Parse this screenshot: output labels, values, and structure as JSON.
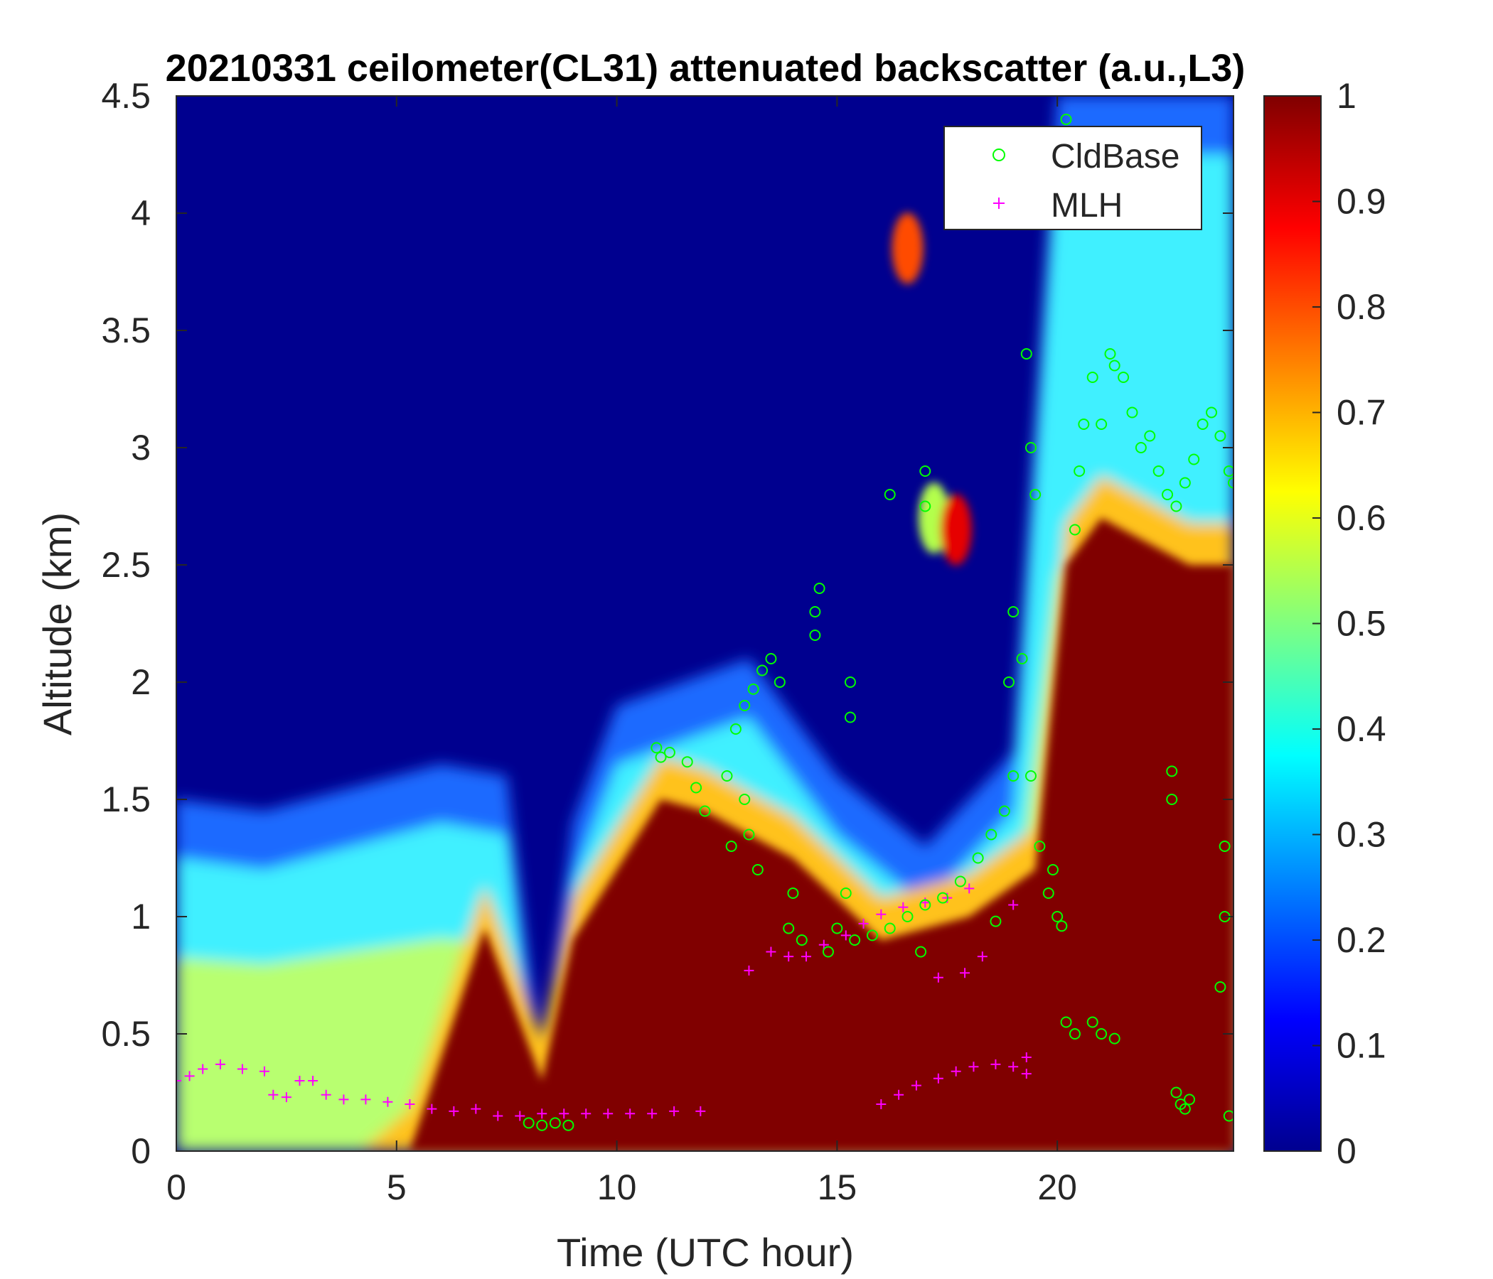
{
  "chart_data": {
    "type": "heatmap",
    "title": "20210331 ceilometer(CL31) attenuated backscatter (a.u.,L3)",
    "xlabel": "Time (UTC hour)",
    "ylabel": "Altitude (km)",
    "xlim": [
      0,
      24
    ],
    "ylim": [
      0,
      4.5
    ],
    "xticks": [
      0,
      5,
      10,
      15,
      20
    ],
    "yticks": [
      0,
      0.5,
      1,
      1.5,
      2,
      2.5,
      3,
      3.5,
      4,
      4.5
    ],
    "colorbar": {
      "colormap": "jet",
      "clim": [
        0,
        1
      ],
      "ticks": [
        0,
        0.1,
        0.2,
        0.3,
        0.4,
        0.5,
        0.6,
        0.7,
        0.8,
        0.9,
        1
      ]
    },
    "backscatter_field": {
      "unit": "a.u.",
      "layer_top_km": [
        [
          0,
          1.5
        ],
        [
          2,
          1.45
        ],
        [
          4,
          1.55
        ],
        [
          6,
          1.65
        ],
        [
          7.5,
          1.6
        ],
        [
          8.3,
          0.3
        ],
        [
          9,
          1.4
        ],
        [
          10,
          1.9
        ],
        [
          11.5,
          2.0
        ],
        [
          13,
          2.1
        ],
        [
          15,
          1.6
        ],
        [
          17,
          1.3
        ],
        [
          19,
          1.7
        ],
        [
          20,
          4.5
        ],
        [
          24,
          4.5
        ]
      ],
      "saturated_top_km": [
        [
          5.3,
          0
        ],
        [
          7,
          0.95
        ],
        [
          8.3,
          0.3
        ],
        [
          9,
          0.9
        ],
        [
          11,
          1.5
        ],
        [
          12,
          1.45
        ],
        [
          14,
          1.25
        ],
        [
          16,
          0.9
        ],
        [
          18,
          1.0
        ],
        [
          19.5,
          1.2
        ],
        [
          20.2,
          2.5
        ],
        [
          21,
          2.7
        ],
        [
          22,
          2.6
        ],
        [
          23,
          2.5
        ],
        [
          24,
          2.5
        ]
      ],
      "cloud_patches": [
        {
          "t": 16.6,
          "z": 3.85,
          "value": 0.8
        },
        {
          "t": 17.2,
          "z": 2.7,
          "value": 0.55
        },
        {
          "t": 17.7,
          "z": 2.65,
          "value": 0.9
        }
      ]
    },
    "legend": {
      "position": "top-right",
      "entries": [
        {
          "name": "CldBase",
          "marker": "circle",
          "color": "#00ff00"
        },
        {
          "name": "MLH",
          "marker": "plus",
          "color": "#ff00ff"
        }
      ]
    },
    "series": [
      {
        "name": "CldBase",
        "marker": "circle",
        "color": "#00ff00",
        "points": [
          [
            8.0,
            0.12
          ],
          [
            8.3,
            0.11
          ],
          [
            8.6,
            0.12
          ],
          [
            8.9,
            0.11
          ],
          [
            10.9,
            1.72
          ],
          [
            11.0,
            1.68
          ],
          [
            11.2,
            1.7
          ],
          [
            11.6,
            1.66
          ],
          [
            11.8,
            1.55
          ],
          [
            12.0,
            1.45
          ],
          [
            12.5,
            1.6
          ],
          [
            12.7,
            1.8
          ],
          [
            12.9,
            1.9
          ],
          [
            13.1,
            1.97
          ],
          [
            13.3,
            2.05
          ],
          [
            13.5,
            2.1
          ],
          [
            13.7,
            2.0
          ],
          [
            12.6,
            1.3
          ],
          [
            12.9,
            1.5
          ],
          [
            13.2,
            1.2
          ],
          [
            13.0,
            1.35
          ],
          [
            13.9,
            0.95
          ],
          [
            14.0,
            1.1
          ],
          [
            14.2,
            0.9
          ],
          [
            14.5,
            2.3
          ],
          [
            14.6,
            2.4
          ],
          [
            14.5,
            2.2
          ],
          [
            14.8,
            0.85
          ],
          [
            15.0,
            0.95
          ],
          [
            15.2,
            1.1
          ],
          [
            15.3,
            2.0
          ],
          [
            15.3,
            1.85
          ],
          [
            15.4,
            0.9
          ],
          [
            15.8,
            0.92
          ],
          [
            16.2,
            0.95
          ],
          [
            16.6,
            1.0
          ],
          [
            17.0,
            1.05
          ],
          [
            17.4,
            1.08
          ],
          [
            17.8,
            1.15
          ],
          [
            18.2,
            1.25
          ],
          [
            18.5,
            1.35
          ],
          [
            18.8,
            1.45
          ],
          [
            19.0,
            1.6
          ],
          [
            18.9,
            2.0
          ],
          [
            19.0,
            2.3
          ],
          [
            19.2,
            2.1
          ],
          [
            19.4,
            1.6
          ],
          [
            19.6,
            1.3
          ],
          [
            19.8,
            1.1
          ],
          [
            20.0,
            1.0
          ],
          [
            19.3,
            3.4
          ],
          [
            19.4,
            3.0
          ],
          [
            19.5,
            2.8
          ],
          [
            17.0,
            2.75
          ],
          [
            17.0,
            2.9
          ],
          [
            16.2,
            2.8
          ],
          [
            20.2,
            0.55
          ],
          [
            20.4,
            0.5
          ],
          [
            20.8,
            0.55
          ],
          [
            21.0,
            0.5
          ],
          [
            21.3,
            0.48
          ],
          [
            20.4,
            2.65
          ],
          [
            20.5,
            2.9
          ],
          [
            20.6,
            3.1
          ],
          [
            20.8,
            3.3
          ],
          [
            21.0,
            3.1
          ],
          [
            21.2,
            3.4
          ],
          [
            21.3,
            3.35
          ],
          [
            21.5,
            3.3
          ],
          [
            21.7,
            3.15
          ],
          [
            21.9,
            3.0
          ],
          [
            22.1,
            3.05
          ],
          [
            22.3,
            2.9
          ],
          [
            22.5,
            2.8
          ],
          [
            22.7,
            2.75
          ],
          [
            22.9,
            2.85
          ],
          [
            23.1,
            2.95
          ],
          [
            23.3,
            3.1
          ],
          [
            23.5,
            3.15
          ],
          [
            23.7,
            3.05
          ],
          [
            23.9,
            2.9
          ],
          [
            24.0,
            2.85
          ],
          [
            22.7,
            0.25
          ],
          [
            22.8,
            0.2
          ],
          [
            22.9,
            0.18
          ],
          [
            23.0,
            0.22
          ],
          [
            23.9,
            0.15
          ],
          [
            23.7,
            0.7
          ],
          [
            23.8,
            1.0
          ],
          [
            23.8,
            1.3
          ],
          [
            22.6,
            1.5
          ],
          [
            22.6,
            1.62
          ],
          [
            20.2,
            4.4
          ],
          [
            19.9,
            1.2
          ],
          [
            20.1,
            0.96
          ],
          [
            18.6,
            0.98
          ],
          [
            16.9,
            0.85
          ]
        ]
      },
      {
        "name": "MLH",
        "marker": "plus",
        "color": "#ff00ff",
        "points": [
          [
            0.0,
            0.3
          ],
          [
            0.3,
            0.32
          ],
          [
            0.6,
            0.35
          ],
          [
            1.0,
            0.37
          ],
          [
            1.5,
            0.35
          ],
          [
            2.0,
            0.34
          ],
          [
            2.2,
            0.24
          ],
          [
            2.5,
            0.23
          ],
          [
            2.8,
            0.3
          ],
          [
            3.1,
            0.3
          ],
          [
            3.4,
            0.24
          ],
          [
            3.8,
            0.22
          ],
          [
            4.3,
            0.22
          ],
          [
            4.8,
            0.21
          ],
          [
            5.3,
            0.2
          ],
          [
            5.8,
            0.18
          ],
          [
            6.3,
            0.17
          ],
          [
            6.8,
            0.18
          ],
          [
            7.3,
            0.15
          ],
          [
            7.8,
            0.15
          ],
          [
            8.3,
            0.16
          ],
          [
            8.8,
            0.16
          ],
          [
            9.3,
            0.16
          ],
          [
            9.8,
            0.16
          ],
          [
            10.3,
            0.16
          ],
          [
            10.8,
            0.16
          ],
          [
            11.3,
            0.17
          ],
          [
            11.9,
            0.17
          ],
          [
            13.0,
            0.77
          ],
          [
            13.5,
            0.85
          ],
          [
            13.9,
            0.83
          ],
          [
            14.3,
            0.83
          ],
          [
            14.7,
            0.88
          ],
          [
            15.2,
            0.92
          ],
          [
            15.6,
            0.97
          ],
          [
            16.0,
            1.01
          ],
          [
            16.5,
            1.04
          ],
          [
            17.0,
            1.06
          ],
          [
            17.5,
            1.08
          ],
          [
            18.0,
            1.12
          ],
          [
            17.3,
            0.74
          ],
          [
            17.9,
            0.76
          ],
          [
            18.3,
            0.83
          ],
          [
            19.0,
            1.05
          ],
          [
            16.0,
            0.2
          ],
          [
            16.4,
            0.24
          ],
          [
            16.8,
            0.28
          ],
          [
            17.3,
            0.31
          ],
          [
            17.7,
            0.34
          ],
          [
            18.1,
            0.36
          ],
          [
            18.6,
            0.37
          ],
          [
            19.0,
            0.36
          ],
          [
            19.3,
            0.33
          ],
          [
            19.3,
            0.4
          ]
        ]
      }
    ]
  }
}
